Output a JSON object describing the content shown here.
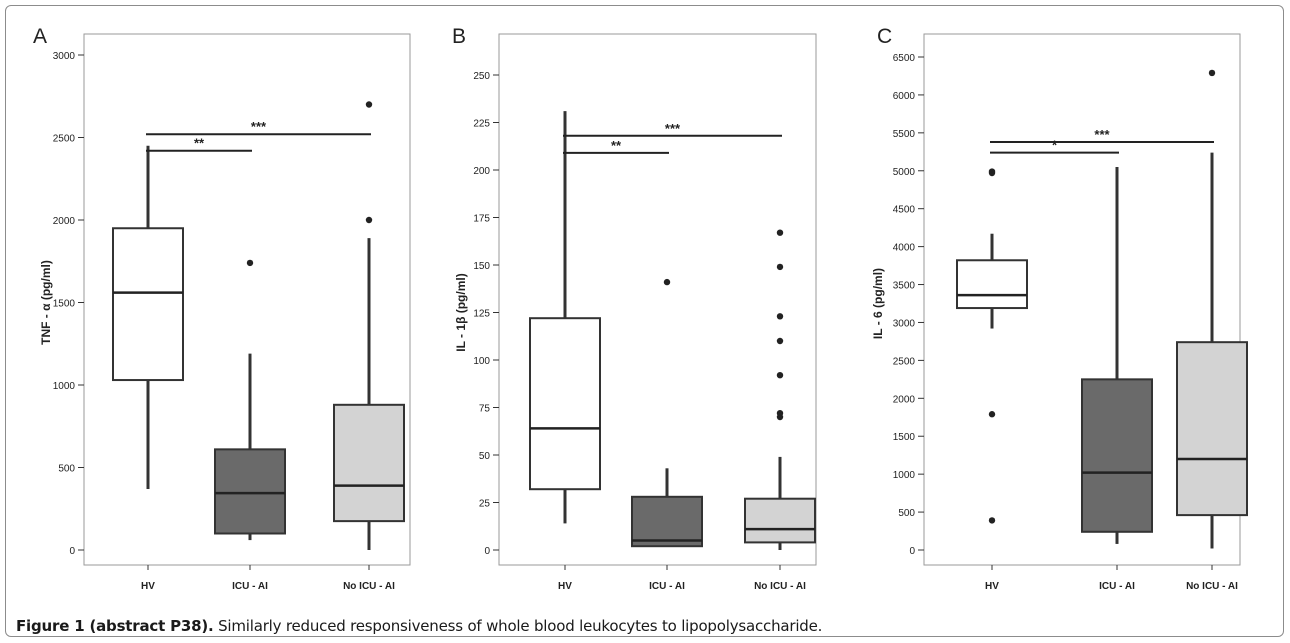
{
  "caption": {
    "bold": "Figure 1 (abstract P38).",
    "text": " Similarly reduced responsiveness of whole blood leukocytes to lipopolysaccharide."
  },
  "colors": {
    "hv": "#ffffff",
    "icu_ai": "#6a6a6a",
    "no_icu_ai": "#d3d3d3",
    "line": "#333333"
  },
  "chart_data": [
    {
      "type": "box",
      "panel": "A",
      "ylabel": "TNF - α (pg/ml)",
      "ylim": [
        0,
        3000
      ],
      "yticks": [
        0,
        500,
        1000,
        1500,
        2000,
        2500,
        3000
      ],
      "categories": [
        "HV",
        "ICU - AI",
        "No ICU - AI"
      ],
      "boxes": [
        {
          "min": 370,
          "q1": 1030,
          "median": 1560,
          "q3": 1950,
          "max": 2450,
          "outliers": []
        },
        {
          "min": 60,
          "q1": 100,
          "median": 345,
          "q3": 610,
          "max": 1190,
          "outliers": [
            1740
          ]
        },
        {
          "min": 0,
          "q1": 175,
          "median": 390,
          "q3": 880,
          "max": 1890,
          "outliers": [
            2000,
            2700
          ]
        }
      ],
      "significance": [
        {
          "from": 0,
          "to": 1,
          "label": "**",
          "y": 2420
        },
        {
          "from": 0,
          "to": 2,
          "label": "***",
          "y": 2520
        }
      ]
    },
    {
      "type": "box",
      "panel": "B",
      "ylabel": "IL - 1β (pg/ml)",
      "ylim": [
        0,
        250
      ],
      "yticks": [
        0,
        25,
        50,
        75,
        100,
        125,
        150,
        175,
        200,
        225,
        250
      ],
      "categories": [
        "HV",
        "ICU - AI",
        "No ICU - AI"
      ],
      "boxes": [
        {
          "min": 14,
          "q1": 32,
          "median": 64,
          "q3": 122,
          "max": 231,
          "outliers": []
        },
        {
          "min": 2,
          "q1": 2,
          "median": 5,
          "q3": 28,
          "max": 43,
          "outliers": [
            141
          ]
        },
        {
          "min": 0,
          "q1": 4,
          "median": 11,
          "q3": 27,
          "max": 49,
          "outliers": [
            70,
            72,
            92,
            110,
            123,
            149,
            167
          ]
        }
      ],
      "significance": [
        {
          "from": 0,
          "to": 1,
          "label": "**",
          "y": 209
        },
        {
          "from": 0,
          "to": 2,
          "label": "***",
          "y": 218
        }
      ]
    },
    {
      "type": "box",
      "panel": "C",
      "ylabel": "IL - 6 (pg/ml)",
      "ylim": [
        0,
        6500
      ],
      "yticks": [
        0,
        500,
        1000,
        1500,
        2000,
        2500,
        3000,
        3500,
        4000,
        4500,
        5000,
        5500,
        6000,
        6500
      ],
      "categories": [
        "HV",
        "ICU - AI",
        "No ICU - AI"
      ],
      "boxes": [
        {
          "min": 2920,
          "q1": 3190,
          "median": 3360,
          "q3": 3820,
          "max": 4170,
          "outliers": [
            390,
            1790,
            4970,
            4990
          ]
        },
        {
          "min": 80,
          "q1": 240,
          "median": 1020,
          "q3": 2250,
          "max": 5050,
          "outliers": []
        },
        {
          "min": 20,
          "q1": 460,
          "median": 1200,
          "q3": 2740,
          "max": 5240,
          "outliers": [
            6290
          ]
        }
      ],
      "significance": [
        {
          "from": 0,
          "to": 1,
          "label": "*",
          "y": 5240
        },
        {
          "from": 0,
          "to": 2,
          "label": "***",
          "y": 5380
        }
      ]
    }
  ]
}
